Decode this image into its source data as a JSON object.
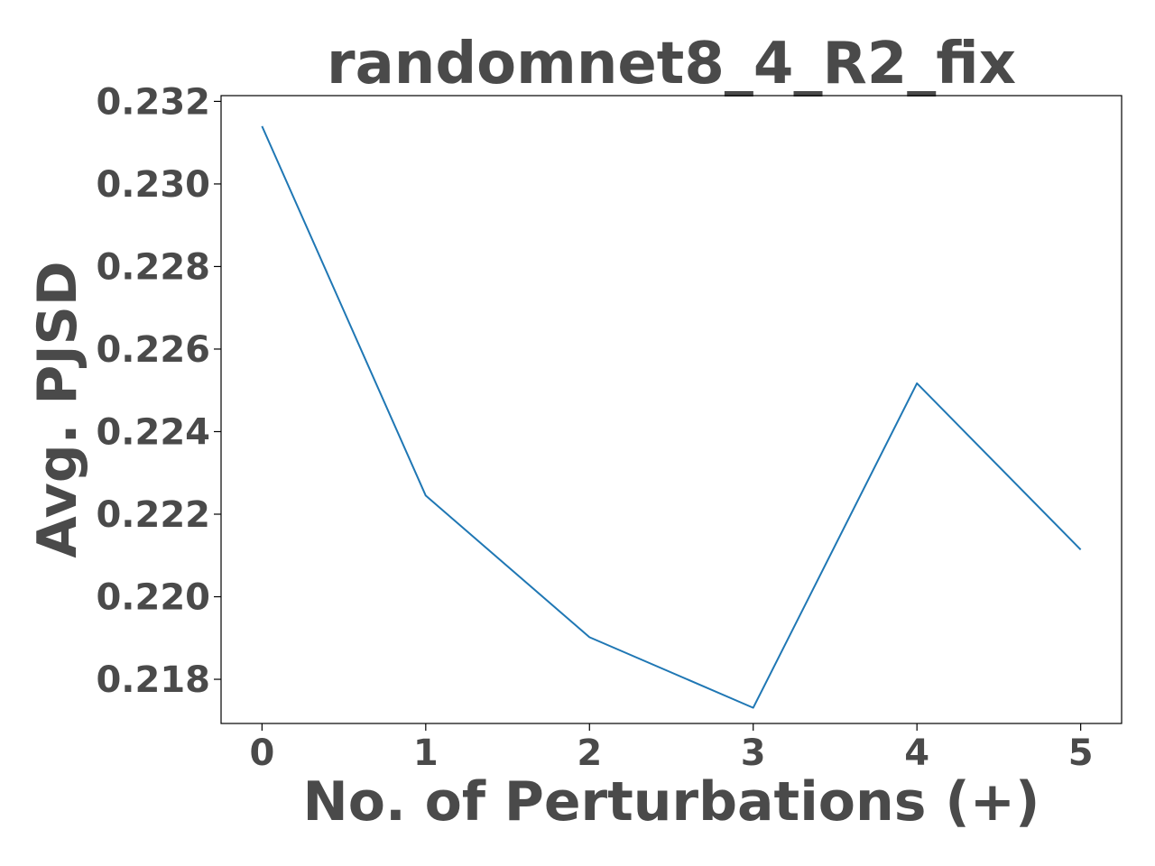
{
  "chart_data": {
    "type": "line",
    "title": "randomnet8_4_R2_fix",
    "xlabel": "No. of Perturbations (+)",
    "ylabel": "Avg. PJSD",
    "x": [
      0,
      1,
      2,
      3,
      4,
      5
    ],
    "x_tick_labels": [
      "0",
      "1",
      "2",
      "3",
      "4",
      "5"
    ],
    "y_ticks": [
      0.218,
      0.22,
      0.222,
      0.224,
      0.226,
      0.228,
      0.23,
      0.232
    ],
    "y_tick_labels": [
      "0.218",
      "0.220",
      "0.222",
      "0.224",
      "0.226",
      "0.228",
      "0.230",
      "0.232"
    ],
    "xlim": [
      -0.25,
      5.25
    ],
    "ylim": [
      0.21693,
      0.23214
    ],
    "grid": false,
    "legend": false,
    "series": [
      {
        "color": "#1f77b4",
        "values": [
          0.2314,
          0.22245,
          0.21902,
          0.21731,
          0.22517,
          0.22114
        ]
      }
    ]
  }
}
